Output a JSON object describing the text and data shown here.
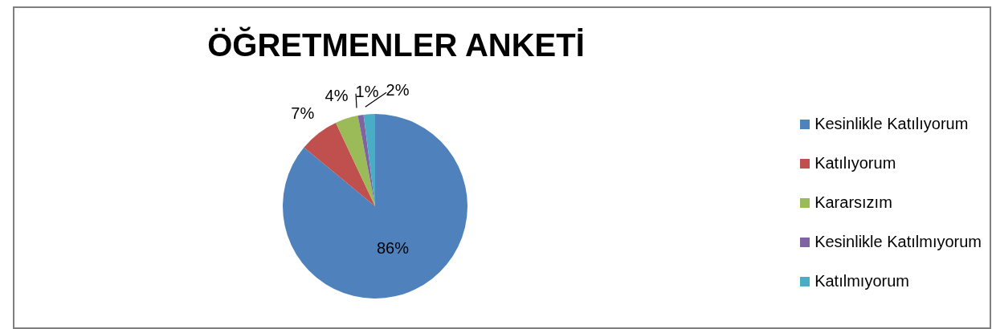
{
  "chart_data": {
    "type": "pie",
    "title": "ÖĞRETMENLER ANKETİ",
    "categories": [
      "Kesinlikle Katılıyorum",
      "Katılıyorum",
      "Kararsızım",
      "Kesinlikle Katılmıyorum",
      "Katılmıyorum"
    ],
    "values": [
      86,
      7,
      4,
      1,
      2
    ],
    "colors": [
      "#4f81bd",
      "#c0504d",
      "#9bbb59",
      "#8064a2",
      "#4bacc6"
    ],
    "value_labels": [
      "86%",
      "7%",
      "4%",
      "1%",
      "2%"
    ],
    "legend": "right"
  }
}
